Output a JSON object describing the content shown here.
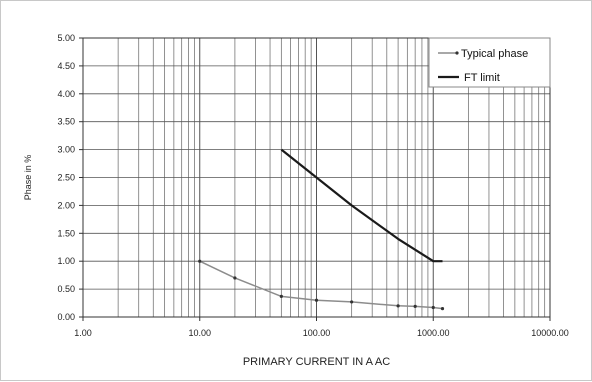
{
  "chart_data": {
    "type": "line",
    "x_scale": "log",
    "xlabel": "PRIMARY CURRENT IN A AC",
    "ylabel": "Phase in %",
    "xlim": [
      1,
      10000
    ],
    "ylim": [
      0,
      5
    ],
    "x_ticks": [
      "1.00",
      "10.00",
      "100.00",
      "1000.00",
      "10000.00"
    ],
    "y_ticks": [
      "0.00",
      "0.50",
      "1.00",
      "1.50",
      "2.00",
      "2.50",
      "3.00",
      "3.50",
      "4.00",
      "4.50",
      "5.00"
    ],
    "grid": true,
    "legend_position": "top-right",
    "series": [
      {
        "name": "Typical phase",
        "color": "#8c8c8c",
        "marker": "dot",
        "x": [
          10,
          20,
          50,
          100,
          200,
          500,
          700,
          1000,
          1200
        ],
        "y": [
          1.0,
          0.7,
          0.37,
          0.3,
          0.27,
          0.2,
          0.19,
          0.17,
          0.15
        ]
      },
      {
        "name": "FT limit",
        "color": "#1a1a1a",
        "marker": "none",
        "x": [
          50,
          100,
          200,
          500,
          1000,
          1200
        ],
        "y": [
          3.0,
          2.5,
          2.0,
          1.4,
          1.0,
          1.0
        ]
      }
    ]
  }
}
